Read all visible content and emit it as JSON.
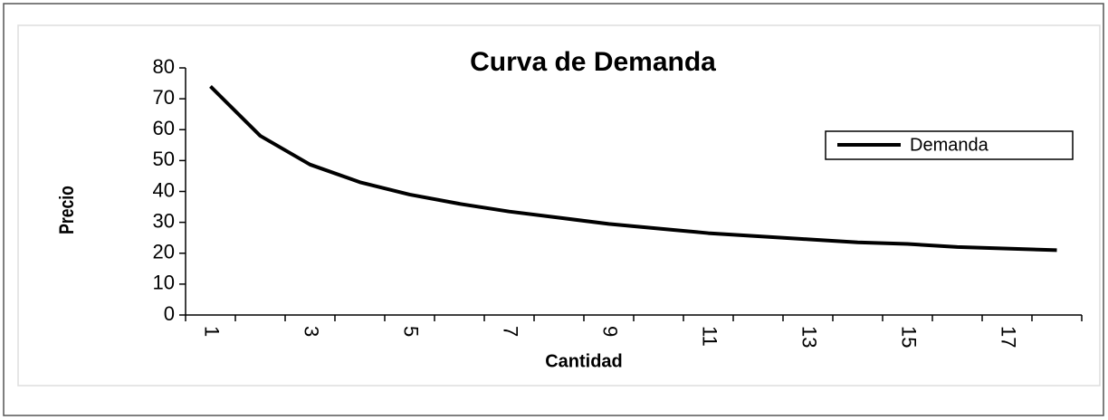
{
  "chart_data": {
    "type": "line",
    "title": "Curva de Demanda",
    "x_label": "Cantidad",
    "y_label": "Precio",
    "categories": [
      "1",
      null,
      "3",
      null,
      "5",
      null,
      "7",
      null,
      "9",
      null,
      "11",
      null,
      "13",
      null,
      "15",
      null,
      "17",
      null
    ],
    "series": [
      {
        "name": "Demanda",
        "color": "#000000",
        "values": [
          74,
          58,
          48.7,
          43,
          39,
          36,
          33.5,
          31.5,
          29.5,
          28,
          26.5,
          25.5,
          24.5,
          23.5,
          23,
          22,
          21.5,
          21
        ]
      }
    ],
    "ylim": [
      0,
      80
    ],
    "yticks": [
      0,
      10,
      20,
      30,
      40,
      50,
      60,
      70,
      80
    ],
    "legend": "right"
  }
}
